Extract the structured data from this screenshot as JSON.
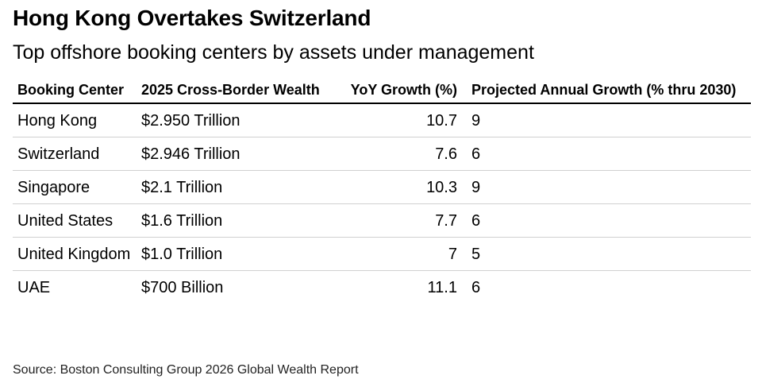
{
  "title": "Hong Kong Overtakes Switzerland",
  "subtitle": "Top offshore booking centers by assets under management",
  "source": "Source: Boston Consulting Group 2026 Global Wealth Report",
  "chart_data": {
    "type": "table",
    "title": "Hong Kong Overtakes Switzerland",
    "subtitle": "Top offshore booking centers by assets under management",
    "columns": [
      "Booking Center",
      "2025 Cross-Border Wealth",
      "YoY Growth (%)",
      "Projected Annual Growth (% thru 2030)"
    ],
    "rows": [
      [
        "Hong Kong",
        "$2.950 Trillion",
        "10.7",
        "9"
      ],
      [
        "Switzerland",
        "$2.946 Trillion",
        "7.6",
        "6"
      ],
      [
        "Singapore",
        "$2.1 Trillion",
        "10.3",
        "9"
      ],
      [
        "United States",
        "$1.6 Trillion",
        "7.7",
        "6"
      ],
      [
        "United Kingdom",
        "$1.0 Trillion",
        "7",
        "5"
      ],
      [
        "UAE",
        "$700 Billion",
        "11.1",
        "6"
      ]
    ]
  }
}
